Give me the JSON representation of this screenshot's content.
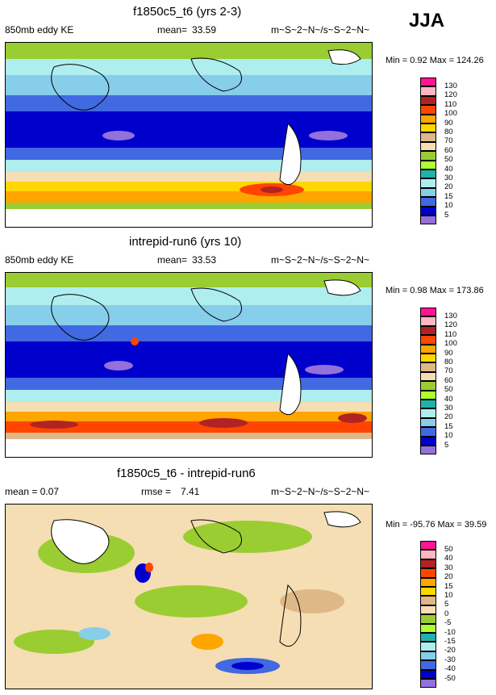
{
  "season": "JJA",
  "panels": [
    {
      "title": "f1850c5_t6 (yrs 2-3)",
      "left_label": "850mb eddy KE",
      "stat_label": "mean=",
      "stat_value": "33.59",
      "right_label": "m~S~2~N~/s~S~2~N~",
      "minmax": "Min =   0.92 Max = 124.26",
      "levels": [
        "130",
        "120",
        "110",
        "100",
        "90",
        "80",
        "70",
        "60",
        "50",
        "40",
        "30",
        "20",
        "15",
        "10",
        "5"
      ],
      "colors": [
        "#ff1493",
        "#ffb6c1",
        "#b22222",
        "#ff4500",
        "#ffa500",
        "#ffd700",
        "#deb887",
        "#f5deb3",
        "#9acd32",
        "#adff2f",
        "#20b2aa",
        "#afeeee",
        "#87ceeb",
        "#4169e1",
        "#0000cd",
        "#9370db"
      ]
    },
    {
      "title": "intrepid-run6 (yrs 10)",
      "left_label": "850mb eddy KE",
      "stat_label": "mean=",
      "stat_value": "33.53",
      "right_label": "m~S~2~N~/s~S~2~N~",
      "minmax": "Min =   0.98 Max = 173.86",
      "levels": [
        "130",
        "120",
        "110",
        "100",
        "90",
        "80",
        "70",
        "60",
        "50",
        "40",
        "30",
        "20",
        "15",
        "10",
        "5"
      ],
      "colors": [
        "#ff1493",
        "#ffb6c1",
        "#b22222",
        "#ff4500",
        "#ffa500",
        "#ffd700",
        "#deb887",
        "#f5deb3",
        "#9acd32",
        "#adff2f",
        "#20b2aa",
        "#afeeee",
        "#87ceeb",
        "#4169e1",
        "#0000cd",
        "#9370db"
      ]
    },
    {
      "title": "f1850c5_t6 - intrepid-run6",
      "left_label": "mean =   0.07",
      "stat_label": "rmse =",
      "stat_value": "7.41",
      "right_label": "m~S~2~N~/s~S~2~N~",
      "minmax": "Min = -95.76 Max =  39.59",
      "levels": [
        "50",
        "40",
        "30",
        "20",
        "15",
        "10",
        "5",
        "0",
        "-5",
        "-10",
        "-15",
        "-20",
        "-30",
        "-40",
        "-50"
      ],
      "colors": [
        "#ff1493",
        "#ffb6c1",
        "#b22222",
        "#ff4500",
        "#ffa500",
        "#ffd700",
        "#deb887",
        "#f5deb3",
        "#9acd32",
        "#adff2f",
        "#20b2aa",
        "#afeeee",
        "#87ceeb",
        "#4169e1",
        "#0000cd",
        "#9370db"
      ]
    }
  ]
}
